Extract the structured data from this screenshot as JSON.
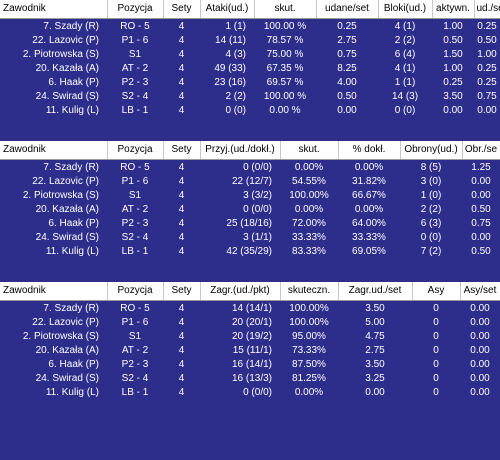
{
  "colors": {
    "background": "#2d2d8c",
    "header_bg": "#ffffff",
    "header_text": "#000000",
    "cell_text": "#ffffff"
  },
  "table1": {
    "headers": [
      "Zawodnik",
      "Pozycja",
      "Sety",
      "Ataki(ud.)",
      "skut.",
      "udane/set",
      "Bloki(ud.)",
      "aktywn.",
      "ud./se"
    ],
    "rows": [
      [
        "7. Szady (R)",
        "RO - 5",
        "4",
        "1 (1)",
        "100.00 %",
        "0.25",
        "4 (1)",
        "1.00",
        "0.25"
      ],
      [
        "22. Lazovic (P)",
        "P1 - 6",
        "4",
        "14 (11)",
        "78.57 %",
        "2.75",
        "2 (2)",
        "0.50",
        "0.50"
      ],
      [
        "2. Piotrowska (S)",
        "S1",
        "4",
        "4 (3)",
        "75.00 %",
        "0.75",
        "6 (4)",
        "1.50",
        "1.00"
      ],
      [
        "20. Kazała (A)",
        "AT - 2",
        "4",
        "49 (33)",
        "67.35 %",
        "8.25",
        "4 (1)",
        "1.00",
        "0.25"
      ],
      [
        "6. Haak (P)",
        "P2 - 3",
        "4",
        "23 (16)",
        "69.57 %",
        "4.00",
        "1 (1)",
        "0.25",
        "0.25"
      ],
      [
        "24. Swirad (S)",
        "S2 - 4",
        "4",
        "2 (2)",
        "100.00 %",
        "0.50",
        "14 (3)",
        "3.50",
        "0.75"
      ],
      [
        "11. Kulig (L)",
        "LB - 1",
        "4",
        "0 (0)",
        "0.00 %",
        "0.00",
        "0 (0)",
        "0.00",
        "0.00"
      ]
    ]
  },
  "table2": {
    "headers": [
      "Zawodnik",
      "Pozycja",
      "Sety",
      "Przyj.(ud./dokł.)",
      "skut.",
      "% dokł.",
      "Obrony(ud.)",
      "Obr./se"
    ],
    "rows": [
      [
        "7. Szady (R)",
        "RO - 5",
        "4",
        "0 (0/0)",
        "0.00%",
        "0.00%",
        "8 (5)",
        "1.25"
      ],
      [
        "22. Lazovic (P)",
        "P1 - 6",
        "4",
        "22 (12/7)",
        "54.55%",
        "31.82%",
        "3 (0)",
        "0.00"
      ],
      [
        "2. Piotrowska (S)",
        "S1",
        "4",
        "3 (3/2)",
        "100.00%",
        "66.67%",
        "1 (0)",
        "0.00"
      ],
      [
        "20. Kazała (A)",
        "AT - 2",
        "4",
        "0 (0/0)",
        "0.00%",
        "0.00%",
        "2 (2)",
        "0.50"
      ],
      [
        "6. Haak (P)",
        "P2 - 3",
        "4",
        "25 (18/16)",
        "72.00%",
        "64.00%",
        "6 (3)",
        "0.75"
      ],
      [
        "24. Swirad (S)",
        "S2 - 4",
        "4",
        "3 (1/1)",
        "33.33%",
        "33.33%",
        "0 (0)",
        "0.00"
      ],
      [
        "11. Kulig (L)",
        "LB - 1",
        "4",
        "42 (35/29)",
        "83.33%",
        "69.05%",
        "7 (2)",
        "0.50"
      ]
    ]
  },
  "table3": {
    "headers": [
      "Zawodnik",
      "Pozycja",
      "Sety",
      "Zagr.(ud./pkt)",
      "skuteczn.",
      "Zagr.ud./set",
      "Asy",
      "Asy/set"
    ],
    "rows": [
      [
        "7. Szady (R)",
        "RO - 5",
        "4",
        "14 (14/1)",
        "100.00%",
        "3.50",
        "0",
        "0.00"
      ],
      [
        "22. Lazovic (P)",
        "P1 - 6",
        "4",
        "20 (20/1)",
        "100.00%",
        "5.00",
        "0",
        "0.00"
      ],
      [
        "2. Piotrowska (S)",
        "S1",
        "4",
        "20 (19/2)",
        "95.00%",
        "4.75",
        "0",
        "0.00"
      ],
      [
        "20. Kazała (A)",
        "AT - 2",
        "4",
        "15 (11/1)",
        "73.33%",
        "2.75",
        "0",
        "0.00"
      ],
      [
        "6. Haak (P)",
        "P2 - 3",
        "4",
        "16 (14/1)",
        "87.50%",
        "3.50",
        "0",
        "0.00"
      ],
      [
        "24. Swirad (S)",
        "S2 - 4",
        "4",
        "16 (13/3)",
        "81.25%",
        "3.25",
        "0",
        "0.00"
      ],
      [
        "11. Kulig (L)",
        "LB - 1",
        "4",
        "0 (0/0)",
        "0.00%",
        "0.00",
        "0",
        "0.00"
      ]
    ]
  }
}
